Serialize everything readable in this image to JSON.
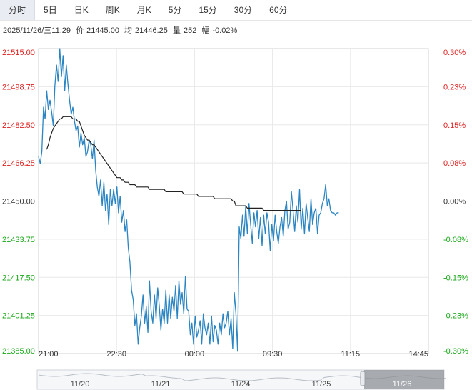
{
  "tabs": [
    {
      "label": "分时",
      "active": true
    },
    {
      "label": "5日",
      "active": false
    },
    {
      "label": "日K",
      "active": false
    },
    {
      "label": "周K",
      "active": false
    },
    {
      "label": "月K",
      "active": false
    },
    {
      "label": "5分",
      "active": false
    },
    {
      "label": "15分",
      "active": false
    },
    {
      "label": "30分",
      "active": false
    },
    {
      "label": "60分",
      "active": false
    }
  ],
  "info": {
    "datetime": "2025/11/26/三11:29",
    "price_label": "价",
    "price": "21445.00",
    "avg_label": "均",
    "avg": "21446.25",
    "vol_label": "量",
    "vol": "252",
    "change_label": "幅",
    "change": "-0.02%"
  },
  "colors": {
    "up": "#e02020",
    "down": "#18a818",
    "neutral": "#333333",
    "price_line": "#2a85c2",
    "avg_line": "#222222",
    "grid": "#e8e8e8"
  },
  "chart_data": {
    "type": "line",
    "prev_close": 21450,
    "ylim": [
      21385,
      21515
    ],
    "left_ticks": [
      "21515.00",
      "21498.75",
      "21482.50",
      "21466.25",
      "21450.00",
      "21433.75",
      "21417.50",
      "21401.25",
      "21385.00"
    ],
    "right_ticks": [
      "0.30%",
      "0.23%",
      "0.15%",
      "0.08%",
      "0.00%",
      "-0.08%",
      "-0.15%",
      "-0.23%",
      "-0.30%"
    ],
    "x_ticks": [
      "21:00",
      "22:30",
      "00:00",
      "09:30",
      "11:15",
      "14:45"
    ],
    "series": [
      {
        "key": "price",
        "values": [
          21469,
          21466,
          21471,
          21490,
          21485,
          21497,
          21489,
          21493,
          21488,
          21482,
          21499,
          21508,
          21501,
          21515,
          21503,
          21512,
          21497,
          21508,
          21500,
          21493,
          21487,
          21490,
          21484,
          21480,
          21482,
          21473,
          21479,
          21474,
          21477,
          21469,
          21471,
          21476,
          21474,
          21468,
          21476,
          21463,
          21456,
          21452,
          21459,
          21448,
          21458,
          21446,
          21453,
          21440,
          21455,
          21448,
          21455,
          21449,
          21456,
          21445,
          21452,
          21441,
          21446,
          21437,
          21442,
          21430,
          21424,
          21412,
          21408,
          21397,
          21402,
          21389,
          21396,
          21401,
          21410,
          21398,
          21405,
          21394,
          21416,
          21403,
          21398,
          21410,
          21400,
          21413,
          21405,
          21395,
          21404,
          21398,
          21412,
          21398,
          21410,
          21400,
          21409,
          21403,
          21414,
          21400,
          21416,
          21406,
          21411,
          21402,
          21418,
          21404,
          21403,
          21393,
          21398,
          21389,
          21401,
          21392,
          21395,
          21399,
          21389,
          21402,
          21396,
          21393,
          21398,
          21389,
          21401,
          21390,
          21397,
          21395,
          21389,
          21398,
          21393,
          21402,
          21396,
          21398,
          21403,
          21393,
          21400,
          21387,
          21411,
          21402,
          21386,
          21439,
          21434,
          21444,
          21435,
          21448,
          21436,
          21449,
          21440,
          21432,
          21445,
          21439,
          21446,
          21434,
          21443,
          21431,
          21444,
          21436,
          21445,
          21441,
          21429,
          21440,
          21433,
          21444,
          21437,
          21432,
          21439,
          21443,
          21435,
          21446,
          21450,
          21438,
          21441,
          21454,
          21446,
          21437,
          21448,
          21441,
          21455,
          21438,
          21447,
          21436,
          21449,
          21443,
          21437,
          21451,
          21440,
          21445,
          21447,
          21436,
          21444,
          21445,
          21449,
          21451,
          21457,
          21448,
          21451,
          21446,
          21445,
          21445,
          21444,
          21445,
          21445
        ],
        "start_index": 0,
        "total_slots": 240
      },
      {
        "key": "avg",
        "values": [
          21472,
          21474,
          21477,
          21479,
          21481,
          21482,
          21483,
          21484,
          21485,
          21485,
          21486,
          21486,
          21486,
          21486,
          21486,
          21486,
          21485,
          21485,
          21485,
          21484,
          21484,
          21482,
          21480,
          21478,
          21477,
          21476,
          21476,
          21475,
          21474,
          21474,
          21473,
          21472,
          21471,
          21470,
          21469,
          21468,
          21467,
          21466,
          21465,
          21464,
          21463,
          21462,
          21461,
          21460,
          21460,
          21460,
          21459,
          21459,
          21458,
          21458,
          21458,
          21457,
          21457,
          21457,
          21457,
          21456,
          21456,
          21456,
          21456,
          21456,
          21456,
          21456,
          21456,
          21455,
          21455,
          21455,
          21455,
          21455,
          21455,
          21455,
          21455,
          21455,
          21455,
          21454,
          21454,
          21454,
          21454,
          21454,
          21454,
          21454,
          21454,
          21454,
          21454,
          21454,
          21453,
          21453,
          21453,
          21453,
          21453,
          21453,
          21453,
          21453,
          21453,
          21452,
          21452,
          21452,
          21452,
          21452,
          21452,
          21452,
          21452,
          21452,
          21452,
          21451,
          21451,
          21451,
          21451,
          21451,
          21451,
          21451,
          21451,
          21451,
          21451,
          21451,
          21450,
          21450,
          21448,
          21448,
          21448,
          21448,
          21448,
          21448,
          21448,
          21447,
          21447,
          21447,
          21447,
          21447,
          21447,
          21447,
          21447,
          21447,
          21447,
          21446,
          21446,
          21446,
          21446,
          21446,
          21446,
          21446,
          21446,
          21446,
          21446,
          21446,
          21446,
          21446,
          21446,
          21446,
          21446,
          21446,
          21446,
          21446,
          21446,
          21446,
          21446,
          21446,
          21446
        ],
        "start_index": 5,
        "total_slots": 240
      }
    ]
  },
  "navigator": {
    "date_labels": [
      "11/20",
      "11/21",
      "11/24",
      "11/25",
      "11/26"
    ]
  }
}
